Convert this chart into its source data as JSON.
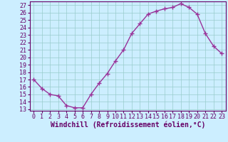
{
  "x": [
    0,
    1,
    2,
    3,
    4,
    5,
    6,
    7,
    8,
    9,
    10,
    11,
    12,
    13,
    14,
    15,
    16,
    17,
    18,
    19,
    20,
    21,
    22,
    23
  ],
  "y": [
    17.0,
    15.8,
    15.0,
    14.8,
    13.5,
    13.2,
    13.2,
    15.0,
    16.5,
    17.8,
    19.5,
    21.0,
    23.2,
    24.5,
    25.8,
    26.2,
    26.5,
    26.7,
    27.2,
    26.7,
    25.8,
    23.2,
    21.5,
    20.5
  ],
  "line_color": "#993399",
  "marker": "+",
  "marker_size": 4,
  "bg_color": "#cceeff",
  "grid_color": "#99cccc",
  "xlabel": "Windchill (Refroidissement éolien,°C)",
  "xlim_min": -0.5,
  "xlim_max": 23.5,
  "ylim_min": 12.8,
  "ylim_max": 27.5,
  "yticks": [
    13,
    14,
    15,
    16,
    17,
    18,
    19,
    20,
    21,
    22,
    23,
    24,
    25,
    26,
    27
  ],
  "xticks": [
    0,
    1,
    2,
    3,
    4,
    5,
    6,
    7,
    8,
    9,
    10,
    11,
    12,
    13,
    14,
    15,
    16,
    17,
    18,
    19,
    20,
    21,
    22,
    23
  ],
  "axis_color": "#660066",
  "tick_color": "#660066",
  "label_color": "#660066",
  "font_size": 6,
  "xlabel_fontsize": 7,
  "linewidth": 1.0,
  "marker_linewidth": 1.0
}
